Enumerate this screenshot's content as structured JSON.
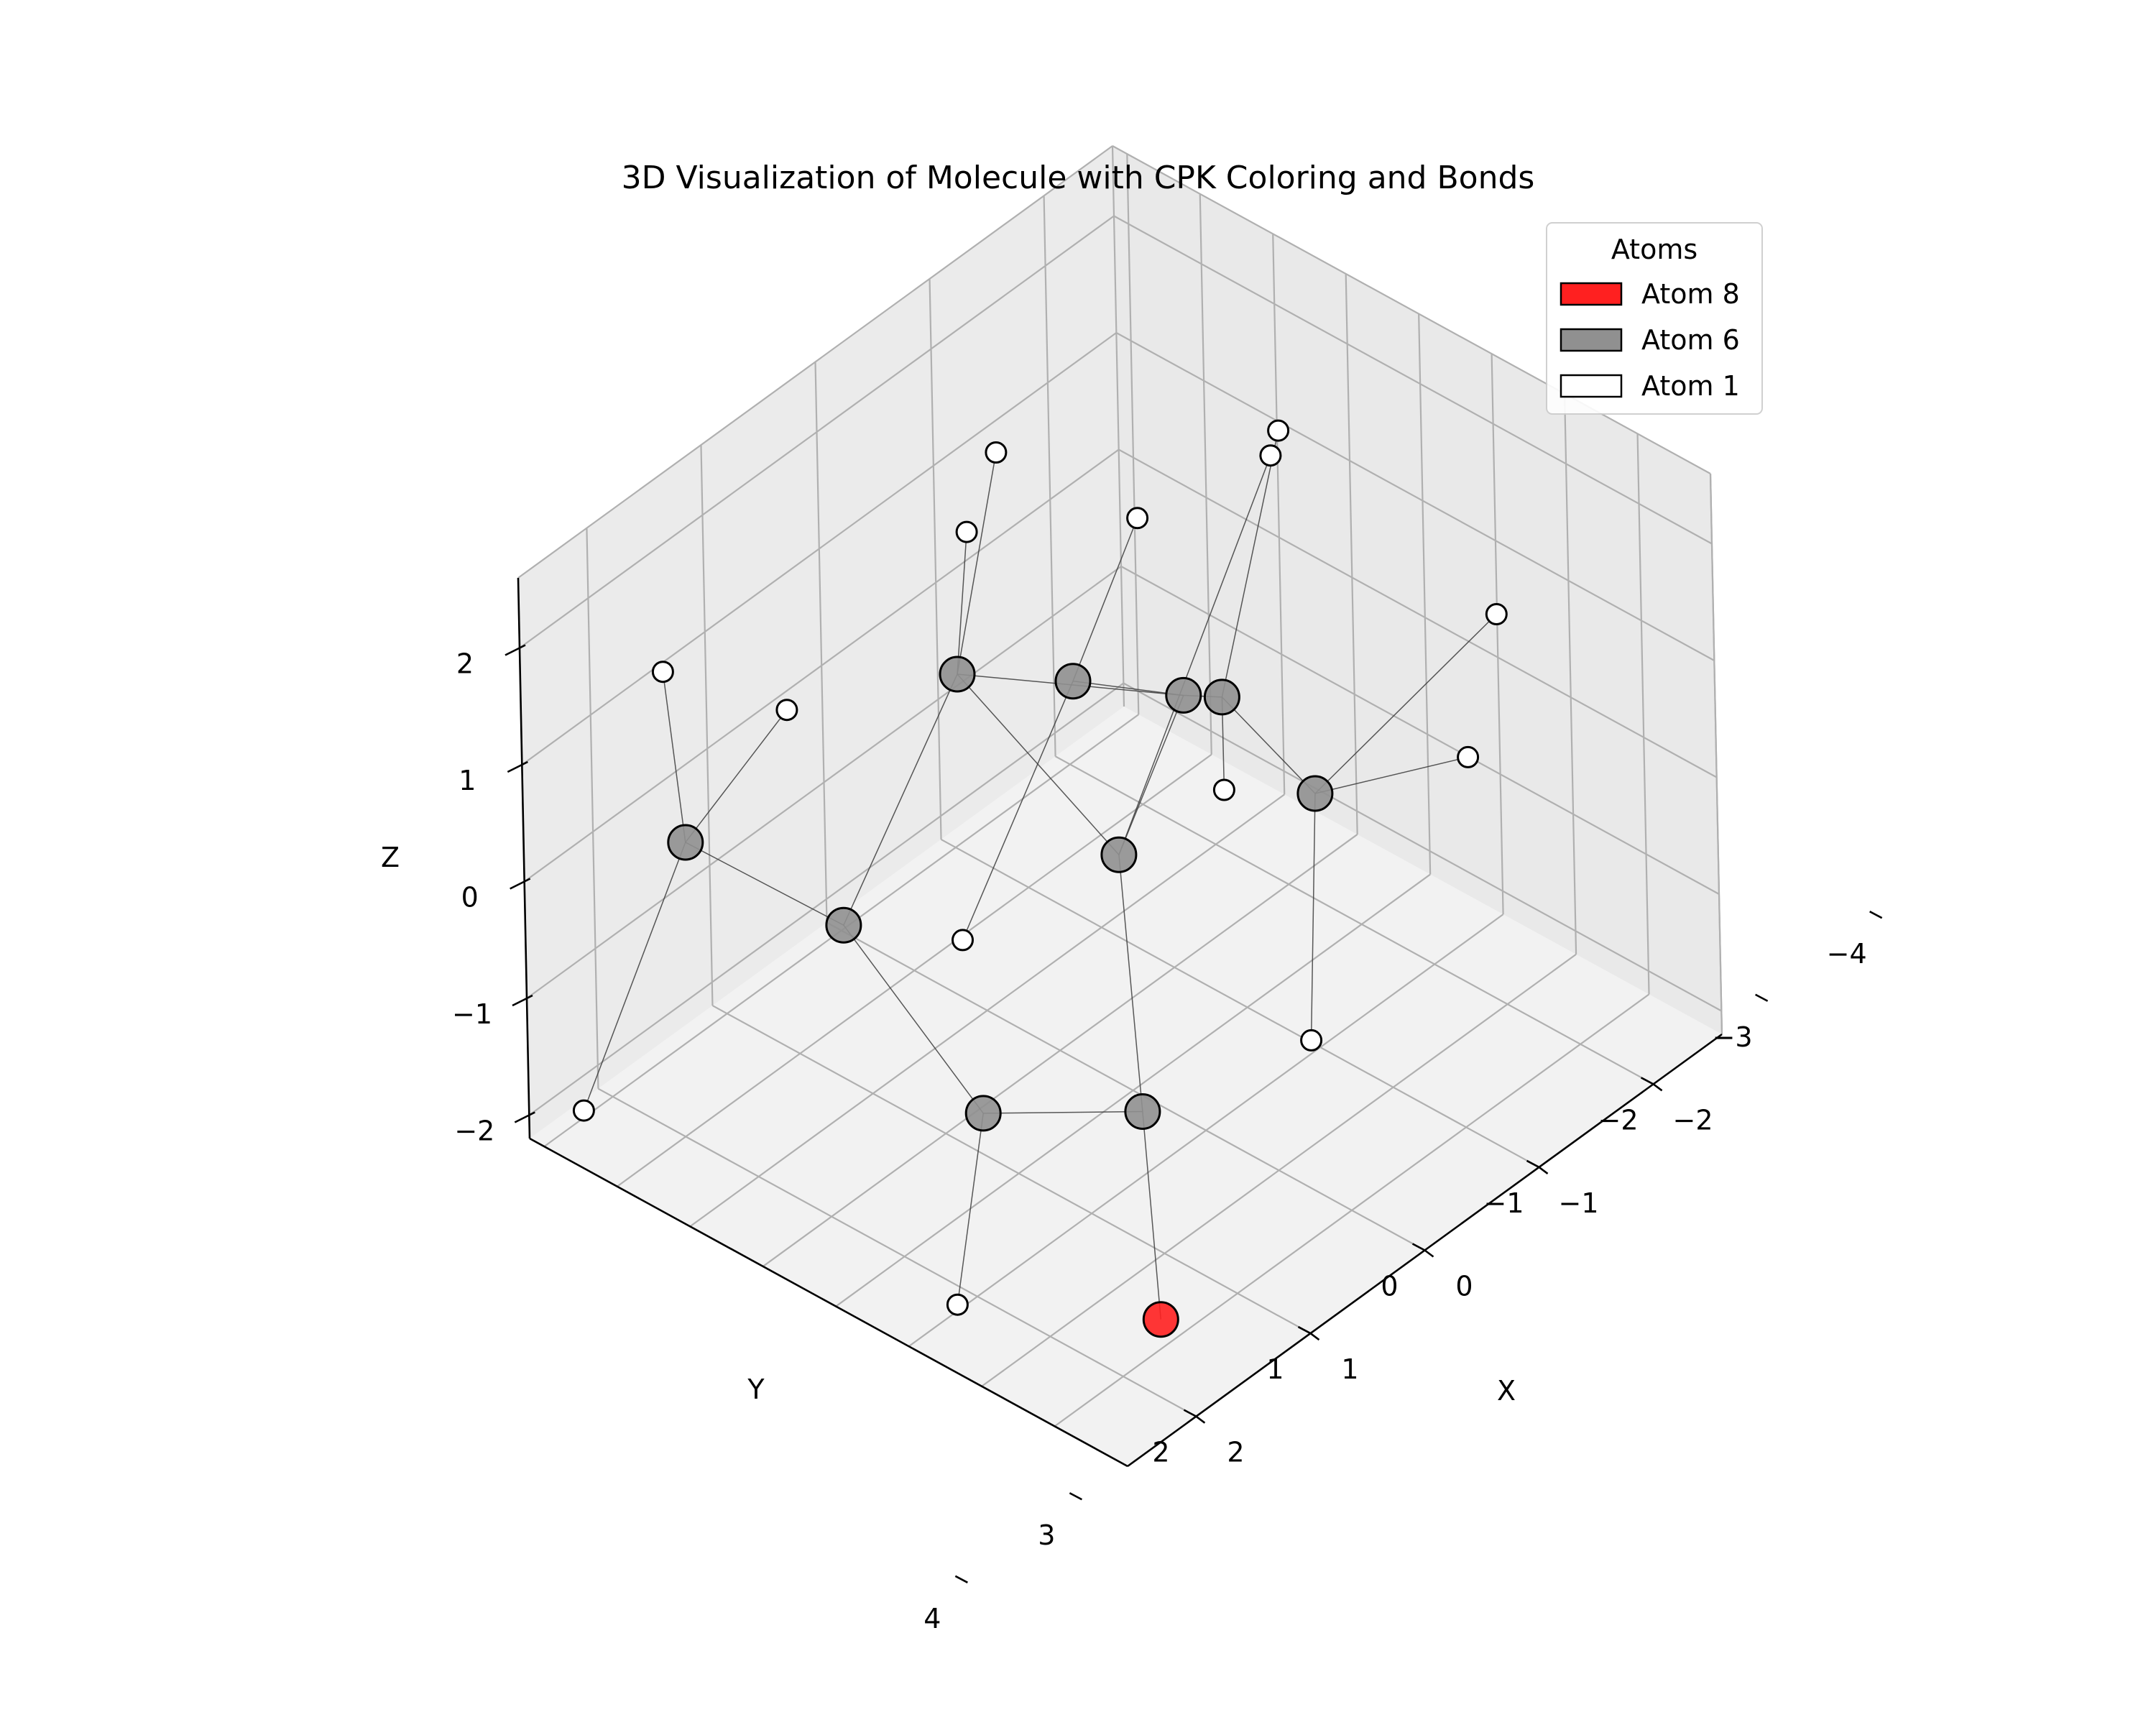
{
  "chart_data": {
    "type": "scatter3d",
    "title": "3D Visualization of Molecule with CPK Coloring and Bonds",
    "xlabel": "X",
    "ylabel": "Y",
    "zlabel": "Z",
    "xlim": [
      -2.6,
      2.6
    ],
    "ylim": [
      -4.2,
      4.0
    ],
    "zlim": [
      -2.2,
      2.6
    ],
    "x_ticks": [
      -2,
      -1,
      0,
      1,
      2
    ],
    "x_tick_labels": [
      "−2",
      "−1",
      "0",
      "1",
      "2"
    ],
    "y_ticks": [
      -4,
      -3,
      -2,
      -1,
      0,
      1,
      2,
      3,
      4
    ],
    "y_tick_labels": [
      "−4",
      "−3",
      "−2",
      "−1",
      "0",
      "1",
      "2",
      "3",
      "4"
    ],
    "z_ticks": [
      -2,
      -1,
      0,
      1,
      2
    ],
    "z_tick_labels": [
      "−2",
      "−1",
      "0",
      "1",
      "2"
    ],
    "grid": true,
    "legend": {
      "title": "Atoms",
      "placement": "top-right",
      "entries": [
        {
          "label": "Atom 8",
          "color": "#ff2020"
        },
        {
          "label": "Atom 6",
          "color": "#909090"
        },
        {
          "label": "Atom 1",
          "color": "#ffffff"
        }
      ]
    },
    "element_colors": {
      "8": "#ff2020",
      "6": "#909090",
      "1": "#ffffff"
    },
    "atoms": [
      {
        "id": "C1",
        "element": 6,
        "x": 2.28,
        "y": -2.47,
        "z": 0.7
      },
      {
        "id": "C2",
        "element": 6,
        "x": 1.77,
        "y": -1.12,
        "z": 0.09
      },
      {
        "id": "C3",
        "element": 6,
        "x": 0.23,
        "y": -1.95,
        "z": 0.86
      },
      {
        "id": "C4",
        "element": 6,
        "x": -0.3,
        "y": -1.2,
        "z": 0.68
      },
      {
        "id": "C5",
        "element": 6,
        "x": -0.84,
        "y": -0.54,
        "z": 0.4
      },
      {
        "id": "C6",
        "element": 6,
        "x": -1.06,
        "y": -0.36,
        "z": 0.29
      },
      {
        "id": "C7",
        "element": 6,
        "x": -0.82,
        "y": 1.29,
        "z": 0.2
      },
      {
        "id": "C8",
        "element": 6,
        "x": -0.05,
        "y": -0.21,
        "z": -0.29
      },
      {
        "id": "C9",
        "element": 6,
        "x": 1.83,
        "y": 0.86,
        "z": -0.8
      },
      {
        "id": "C10",
        "element": 6,
        "x": 0.91,
        "y": 1.59,
        "z": -1.19
      },
      {
        "id": "O1",
        "element": 8,
        "x": 1.38,
        "y": 2.54,
        "z": -2.31
      },
      {
        "id": "H1",
        "element": 1,
        "x": 2.09,
        "y": -3.04,
        "z": 1.83
      },
      {
        "id": "H2",
        "element": 1,
        "x": 1.37,
        "y": -2.49,
        "z": 1.18
      },
      {
        "id": "H3",
        "element": 1,
        "x": 3.52,
        "y": -1.96,
        "z": -0.54
      },
      {
        "id": "H4",
        "element": 1,
        "x": -0.28,
        "y": -2.17,
        "z": 2.32
      },
      {
        "id": "H5",
        "element": 1,
        "x": 0.13,
        "y": -1.94,
        "z": 2.01
      },
      {
        "id": "H6",
        "element": 1,
        "x": 1.02,
        "y": -0.68,
        "z": -0.42
      },
      {
        "id": "H7",
        "element": 1,
        "x": -1.17,
        "y": -1.66,
        "z": 1.3
      },
      {
        "id": "H8",
        "element": 1,
        "x": -1.84,
        "y": -0.76,
        "z": 1.88
      },
      {
        "id": "H9",
        "element": 1,
        "x": -1.72,
        "y": -0.68,
        "z": 1.78
      },
      {
        "id": "H10",
        "element": 1,
        "x": -0.82,
        "y": 0.03,
        "z": -0.2
      },
      {
        "id": "H11",
        "element": 1,
        "x": -2.21,
        "y": 1.62,
        "z": 0.86
      },
      {
        "id": "H12",
        "element": 1,
        "x": -1.51,
        "y": 2.31,
        "z": 0.37
      },
      {
        "id": "H13",
        "element": 1,
        "x": 0.04,
        "y": 2.55,
        "z": -0.87
      },
      {
        "id": "H14",
        "element": 1,
        "x": 2.21,
        "y": 1.06,
        "z": -2.1
      }
    ],
    "bonds": [
      [
        "C1",
        "C2"
      ],
      [
        "C1",
        "H1"
      ],
      [
        "C1",
        "H2"
      ],
      [
        "C1",
        "H3"
      ],
      [
        "C2",
        "C3"
      ],
      [
        "C2",
        "C9"
      ],
      [
        "C3",
        "C8"
      ],
      [
        "C3",
        "C5"
      ],
      [
        "C3",
        "H4"
      ],
      [
        "C3",
        "H5"
      ],
      [
        "C4",
        "C5"
      ],
      [
        "C4",
        "H6"
      ],
      [
        "C4",
        "H7"
      ],
      [
        "C5",
        "C6"
      ],
      [
        "C5",
        "C8"
      ],
      [
        "C6",
        "C7"
      ],
      [
        "C6",
        "H8"
      ],
      [
        "C6",
        "H10"
      ],
      [
        "C7",
        "H11"
      ],
      [
        "C7",
        "H12"
      ],
      [
        "C7",
        "H13"
      ],
      [
        "C8",
        "C10"
      ],
      [
        "C8",
        "H9"
      ],
      [
        "C9",
        "C10"
      ],
      [
        "C9",
        "H14"
      ],
      [
        "C10",
        "O1"
      ]
    ]
  }
}
